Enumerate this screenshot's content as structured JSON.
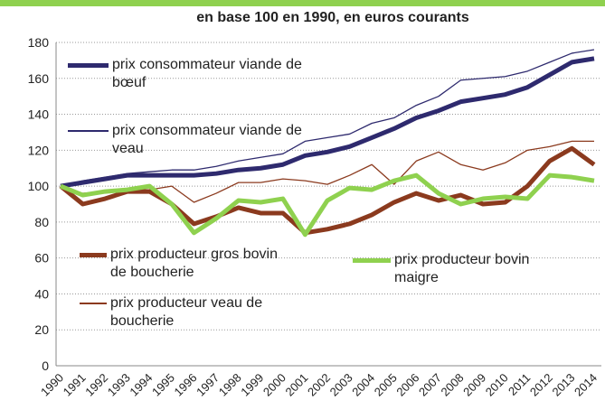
{
  "chart_data": {
    "type": "line",
    "title": "en base 100 en 1990, en euros courants",
    "categories": [
      "1990",
      "1991",
      "1992",
      "1993",
      "1994",
      "1995",
      "1996",
      "1997",
      "1998",
      "1999",
      "2000",
      "2001",
      "2002",
      "2003",
      "2004",
      "2005",
      "2006",
      "2007",
      "2008",
      "2009",
      "2010",
      "2011",
      "2012",
      "2013",
      "2014"
    ],
    "series": [
      {
        "name": "prix consommateur viande de bœuf",
        "color": "#2e2a6e",
        "width": 5,
        "values": [
          100,
          102,
          104,
          106,
          106,
          106,
          106,
          107,
          109,
          110,
          112,
          117,
          119,
          122,
          127,
          132,
          138,
          142,
          147,
          149,
          151,
          155,
          162,
          169,
          171
        ]
      },
      {
        "name": "prix consommateur viande de veau",
        "color": "#2e2a6e",
        "width": 1.3,
        "values": [
          100,
          103,
          105,
          107,
          108,
          109,
          109,
          111,
          114,
          116,
          118,
          125,
          127,
          129,
          135,
          138,
          145,
          150,
          159,
          160,
          161,
          164,
          169,
          174,
          176
        ]
      },
      {
        "name": "prix producteur gros bovin de boucherie",
        "color": "#8b3a1e",
        "width": 5,
        "values": [
          100,
          90,
          93,
          97,
          97,
          90,
          79,
          83,
          88,
          85,
          85,
          74,
          76,
          79,
          84,
          91,
          96,
          92,
          95,
          90,
          91,
          100,
          114,
          121,
          112
        ]
      },
      {
        "name": "prix producteur veau de boucherie",
        "color": "#8b3a1e",
        "width": 1.3,
        "values": [
          100,
          96,
          97,
          98,
          98,
          100,
          91,
          96,
          102,
          102,
          104,
          103,
          101,
          106,
          112,
          101,
          114,
          119,
          112,
          109,
          113,
          120,
          122,
          125,
          125
        ]
      },
      {
        "name": "prix producteur bovin maigre",
        "color": "#8fd14f",
        "width": 5,
        "values": [
          100,
          95,
          97,
          98,
          100,
          90,
          74,
          82,
          92,
          91,
          93,
          73,
          92,
          99,
          98,
          103,
          106,
          96,
          90,
          93,
          94,
          93,
          106,
          105,
          103
        ]
      }
    ],
    "ylim": [
      0,
      180
    ],
    "yticks": [
      0,
      20,
      40,
      60,
      80,
      100,
      120,
      140,
      160,
      180
    ],
    "grid": true
  }
}
